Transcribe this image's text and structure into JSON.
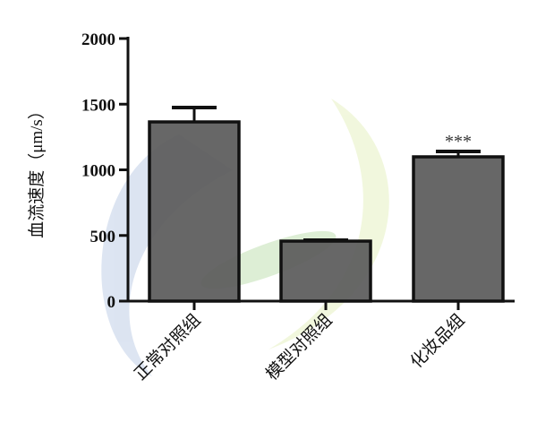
{
  "chart_data": {
    "type": "bar",
    "categories": [
      "正常对照组",
      "模型对照组",
      "化妆品组"
    ],
    "values": [
      1365,
      457,
      1099
    ],
    "error_upper": [
      1474,
      464,
      1140
    ],
    "annotations": [
      "",
      "",
      "***"
    ],
    "ylabel": "血流速度（μm/s）",
    "xlabel": "",
    "ylim": [
      0,
      2000
    ],
    "yticks": [
      "0",
      "500",
      "1000",
      "1500",
      "2000"
    ],
    "grid": false,
    "bar_color": "#5a5a5a"
  }
}
